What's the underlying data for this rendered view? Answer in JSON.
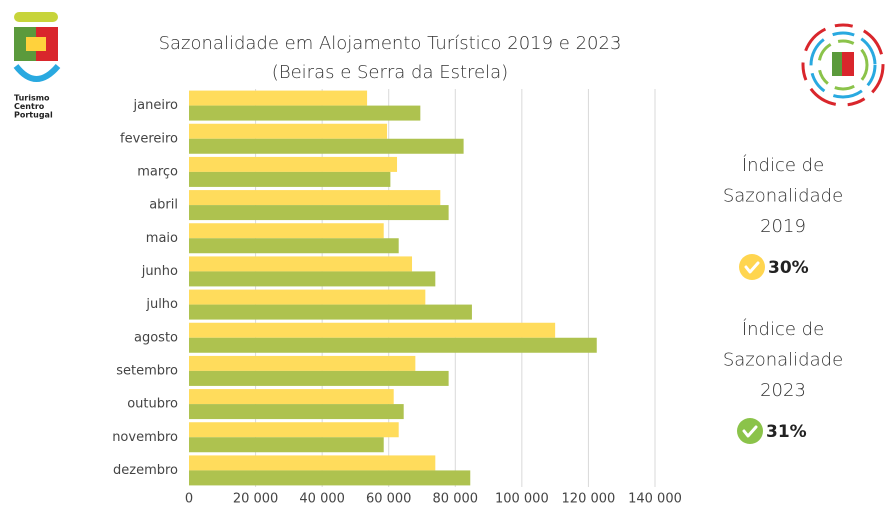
{
  "logo": {
    "lines": [
      "Turismo",
      "Centro",
      "Portugal"
    ]
  },
  "chart_data": {
    "type": "bar",
    "orientation": "horizontal",
    "title": "Sazonalidade em Alojamento Turístico 2019 e 2023",
    "subtitle": "(Beiras e Serra da Estrela)",
    "categories": [
      "janeiro",
      "fevereiro",
      "março",
      "abril",
      "maio",
      "junho",
      "julho",
      "agosto",
      "setembro",
      "outubro",
      "novembro",
      "dezembro"
    ],
    "series": [
      {
        "color": "#ffdc5c",
        "values": [
          53500,
          59500,
          62500,
          75500,
          58500,
          67000,
          71000,
          110000,
          68000,
          61500,
          63000,
          74000
        ]
      },
      {
        "color": "#aec24f",
        "values": [
          69500,
          82500,
          60500,
          78000,
          63000,
          74000,
          85000,
          122500,
          78000,
          64500,
          58500,
          84500
        ]
      }
    ],
    "xlim": [
      0,
      140000
    ],
    "xticks": [
      0,
      {
        "value": 20000,
        "label": "20 000"
      },
      {
        "value": 40000,
        "label": "40 000"
      },
      {
        "value": 60000,
        "label": "60 000"
      },
      {
        "value": 80000,
        "label": "80 000"
      },
      {
        "value": 100000,
        "label": "100 000"
      },
      {
        "value": 120000,
        "label": "120 000"
      },
      {
        "value": 140000,
        "label": "140 000"
      }
    ],
    "grid": true
  },
  "side_panel": [
    {
      "title_lines": [
        "Índice de",
        "Sazonalidade",
        "2019"
      ],
      "value": "30%",
      "color": "#ffd54f"
    },
    {
      "title_lines": [
        "Índice de",
        "Sazonalidade",
        "2023"
      ],
      "value": "31%",
      "color": "#8bc34a"
    }
  ]
}
